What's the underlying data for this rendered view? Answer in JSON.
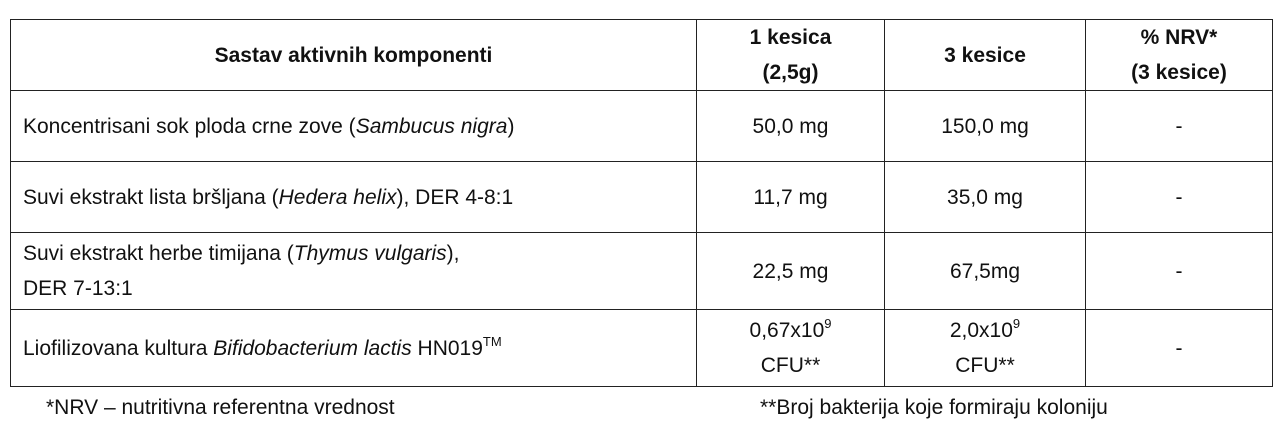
{
  "table": {
    "headers": {
      "component": "Sastav aktivnih komponenti",
      "one_sachet_line1": "1 kesica",
      "one_sachet_line2": "(2,5g)",
      "three_sachets": "3 kesice",
      "nrv_line1": "% NRV*",
      "nrv_line2": "(3 kesice)"
    },
    "rows": [
      {
        "name_pre": "Koncentrisani sok ploda crne zove (",
        "name_latin": "Sambucus nigra",
        "name_post": ")",
        "one_sachet": "50,0 mg",
        "three_sachets": "150,0 mg",
        "nrv": "-"
      },
      {
        "name_pre": "Suvi ekstrakt lista bršljana (",
        "name_latin": "Hedera helix",
        "name_post": "), DER 4-8:1",
        "one_sachet": "11,7 mg",
        "three_sachets": "35,0 mg",
        "nrv": "-"
      },
      {
        "name_pre": "Suvi ekstrakt herbe timijana (",
        "name_latin": "Thymus vulgaris",
        "name_post": "),",
        "name_line2": "DER 7-13:1",
        "one_sachet": "22,5 mg",
        "three_sachets": "67,5mg",
        "nrv": "-"
      },
      {
        "name_pre": "Liofilizovana kultura ",
        "name_latin": "Bifidobacterium lactis",
        "name_post": " HN019",
        "name_sup": "TM",
        "one_sachet_base": "0,67x10",
        "one_sachet_exp": "9",
        "one_sachet_unit": "CFU**",
        "three_sachets_base": "2,0x10",
        "three_sachets_exp": "9",
        "three_sachets_unit": "CFU**",
        "nrv": "-"
      }
    ]
  },
  "footnotes": {
    "nrv": "*NRV – nutritivna referentna vrednost",
    "cfu": "**Broj bakterija koje formiraju koloniju"
  }
}
